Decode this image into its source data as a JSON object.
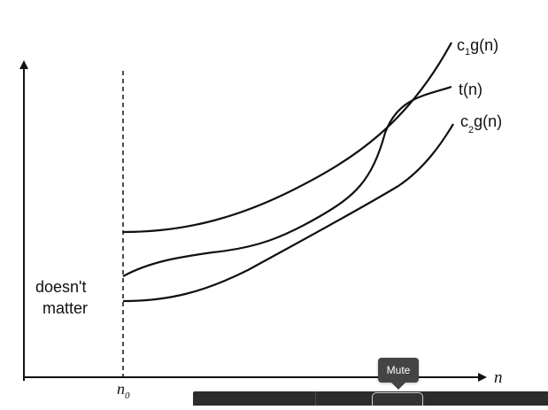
{
  "diagram": {
    "curve_labels": {
      "upper": {
        "c": "c",
        "sub": "1",
        "fn": "g(n)"
      },
      "middle": "t(n)",
      "lower": {
        "c": "c",
        "sub": "2",
        "fn": "g(n)"
      }
    },
    "region_label_line1": "doesn't",
    "region_label_line2": "matter",
    "x_axis_label": "n",
    "threshold_label": {
      "base": "n",
      "sub": "0"
    }
  },
  "tooltip": {
    "text": "Mute"
  },
  "colors": {
    "ink": "#111111",
    "tooltip_bg": "#444444",
    "controlbar_bg": "#2c2c2c"
  },
  "icons": {
    "mute_button": "speaker-mute-icon"
  }
}
